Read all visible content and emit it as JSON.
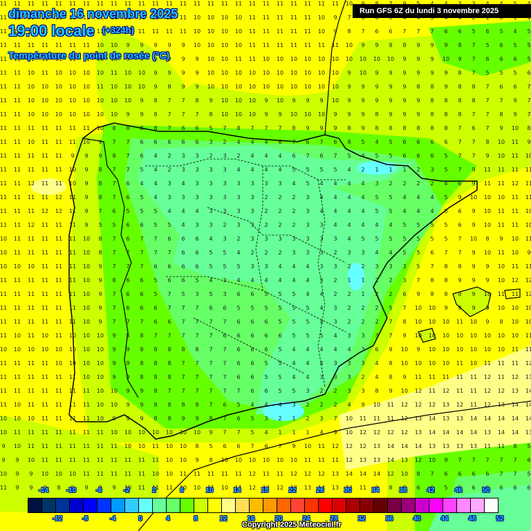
{
  "header": {
    "date": "dimanche 16 novembre 2025",
    "time": "19:00 locale",
    "lead": "(+324h)",
    "variable": "Température du point de rosée (°C)",
    "run": "Run GFS 6Z du lundi 3 novembre 2025"
  },
  "footer": {
    "copyright": "Copyright 2025 Meteociel.fr"
  },
  "legend": {
    "colors": [
      "#001040",
      "#003366",
      "#003399",
      "#0000cc",
      "#0000ff",
      "#0033ff",
      "#0099ff",
      "#33ccff",
      "#66ffff",
      "#66ff99",
      "#66ff66",
      "#66ff00",
      "#ccff00",
      "#ffff00",
      "#ffff88",
      "#ffdd55",
      "#ffbb00",
      "#ff9900",
      "#ff6600",
      "#ff4433",
      "#ff3300",
      "#ff0000",
      "#dd0000",
      "#aa0000",
      "#880000",
      "#660000",
      "#770044",
      "#990077",
      "#cc00cc",
      "#ff00ff",
      "#ff44ff",
      "#ff88ff",
      "#ffaaff",
      "#ffffff"
    ],
    "top_labels": [
      "-14",
      "-10",
      "-6",
      "-2",
      "2",
      "6",
      "10",
      "14",
      "18",
      "22",
      "26",
      "30",
      "34",
      "38",
      "42",
      "46",
      "50"
    ],
    "bottom_labels": [
      "-12",
      "-8",
      "-4",
      "0",
      "4",
      "8",
      "12",
      "16",
      "20",
      "24",
      "28",
      "32",
      "36",
      "40",
      "44",
      "48",
      "52"
    ]
  },
  "map": {
    "region": "Iberian Peninsula",
    "zones": [
      {
        "name": "cool-interior",
        "color": "#66ff99"
      },
      {
        "name": "mid-green",
        "color": "#66ff66"
      },
      {
        "name": "bright-green",
        "color": "#66ff00"
      },
      {
        "name": "yellow-green",
        "color": "#ccff00"
      },
      {
        "name": "yellow",
        "color": "#ffff00"
      },
      {
        "name": "pale-yellow",
        "color": "#ffff88"
      },
      {
        "name": "cyan-spots",
        "color": "#66ffff"
      }
    ]
  },
  "grid_rows": [
    "11 11 11 11 11 11 11 11 11 11 11 11 11 11 11 11 11 11 11 11 11 11 11 11 11 10 9 8 7 9 5 4 4 3 3 4 4 5 4",
    "11 11 11 11 11 11 11 11 11 11 11 11 11 11 10 10 10 10 11 11 11 11 11 10 9 7 6 6 5 4 4 5 4 4 2 1 0 1 1",
    "11 11 11 11 11 11 11 11 11 11 11 11 11 11 10 10 10 10 11 11 11 11 11 10 9 8 7 6 6 7 7 7 6 6 5 6 5 4 5",
    "11 11 11 11 11 11 11 10 10 9 9 9 9 9 10 10 10 10 11 11 11 11 11 11 11 10 9 9 8 8 9 9 9 8 7 5 6 5 5 5",
    "11 11 11 11 11 11 11 10 10 9 9 9 9 9 9 10 10 11 11 10 10 10 10 10 10 10 10 10 10 9 9 9 10 9 7 6 6 6 5 5",
    "11 11 10 11 10 10 10 10 11 10 10 9 9 9 9 10 10 10 10 10 10 10 10 10 10 9 10 9 9 9 9 9 9 8 7 5 5 5 6",
    "11 11 10 10 10 10 10 11 10 10 10 9 8 9 9 10 10 10 10 10 10 10 10 10 10 9 9 9 9 9 8 8 9 8 8 7 6 6 7",
    "11 11 10 10 10 10 10 10 10 10 9 8 7 7 8 9 10 10 10 9 10 9 9 9 10 9 9 9 9 9 9 8 8 8 8 7 7 9 7",
    "11 11 10 10 10 10 10 10 10 9 9 8 7 7 7 8 10 10 10 9 9 10 10 10 9 9 9 8 9 9 9 8 8 8 7 7 8 9 7",
    "11 11 11 11 11 11 11 10 8 8 8 8 7 6 6 5 7 8 7 7 7 8 9 9 9 8 9 8 8 8 8 8 8 7 6 7 9 10 8",
    "11 11 10 11 11 11 10 9 7 7 6 6 6 6 6 3 2 4 4 4 6 7 6 7 6 8 5 4 5 6 6 6 6 7 7 8 10 11 9",
    "11 11 11 11 11 9 9 9 8 7 6 4 2 3 3 2 3 2 4 4 4 6 7 6 7 5 4 5 5 6 6 6 5 7 7 9 10 11 10",
    "11 11 11 11 11 10 9 8 7 7 5 4 2 3 3 3 3 4 4 4 4 5 5 5 5 4 2 1 1 1 2 3 5 7 9 11 11 11 11",
    "11 11 12 11 11 10 9 8 7 6 4 4 3 4 3 3 3 3 3 3 3 4 5 4 4 4 4 3 2 2 2 2 4 6 9 11 11 12 11",
    "11 11 11 11 12 11 9 8 7 6 5 4 3 3 3 3 3 3 3 2 2 2 3 4 4 4 4 5 5 4 4 4 5 9 10 10 10 11 11",
    "11 11 11 12 12 11 9 7 6 5 5 5 4 4 4 3 3 3 3 2 2 2 3 4 4 4 4 5 5 4 4 4 5 6 9 10 11 11 10",
    "11 11 12 11 11 11 9 5 5 6 6 5 5 4 3 3 2 3 3 2 2 2 3 3 4 4 4 4 4 5 5 5 5 6 9 10 11 11 10",
    "10 11 11 11 11 11 10 8 7 6 7 7 6 6 6 4 3 2 3 3 3 3 3 3 3 4 5 5 5 5 5 5 5 7 10 8 9 10 11",
    "10 11 11 11 11 11 10 8 7 7 7 7 7 6 6 5 5 4 2 2 2 3 3 3 2 3 3 4 4 5 5 6 7 7 9 10 11 10 9",
    "10 10 10 11 11 11 10 9 7 7 7 6 6 6 6 5 5 5 3 3 4 4 4 3 3 2 2 3 3 3 5 7 8 8 9 9 10 11 11",
    "11 11 11 11 11 11 10 9 8 6 6 5 6 6 5 4 3 4 4 4 4 4 4 3 2 1 1 2 2 3 7 8 8 9 9 9 10 12 12",
    "11 11 11 11 11 11 10 9 7 6 6 5 7 5 3 5 3 6 6 5 5 5 4 4 2 2 1 2 2 6 9 8 8 8 9 10 11 11 12",
    "11 11 11 11 11 11 10 9 7 6 6 6 7 7 7 6 6 5 5 5 5 5 5 4 3 2 2 2 5 7 10 10 9 9 9 9 10 10 10",
    "11 11 11 11 11 11 10 9 7 7 7 6 6 7 7 7 7 6 6 6 5 5 5 4 3 2 2 2 7 8 10 10 10 11 10 9 8 10 10",
    "11 10 11 10 11 10 10 10 9 8 8 7 7 7 7 7 6 6 6 6 6 5 5 5 4 3 3 3 7 9 10 10 10 10 10 10 10 10 11",
    "10 10 10 10 10 10 10 10 9 9 8 8 8 8 8 7 7 6 6 6 5 4 4 4 4 4 3 6 9 10 9 10 10 10 10 10 10 11 11",
    "11 11 11 11 10 10 10 10 9 9 8 8 8 7 7 7 7 6 6 5 5 4 4 4 3 3 3 4 8 10 10 10 10 11 10 11 11 11 12",
    "11 11 11 11 11 11 10 10 9 9 8 8 8 7 7 7 7 6 6 5 5 4 4 3 3 3 2 4 8 9 11 11 11 11 11 12 11 12 13",
    "11 11 11 11 11 11 11 10 10 9 9 8 7 7 7 7 7 7 6 6 5 5 3 2 2 3 3 8 9 10 12 11 12 11 11 12 12 13 14",
    "11 10 11 11 11 11 11 10 10 9 9 8 8 8 8 7 6 5 4 4 4 3 2 2 2 4 9 10 11 12 12 12 13 12 11 12 13 14 14",
    "10 10 10 11 11 11 11 10 9 9 9 8 8 9 9 8 7 6 5 3 2 1 2 3 7 10 11 11 11 12 13 14 13 13 14 14 14 14 14",
    "10 11 11 11 11 11 11 11 10 10 10 10 10 10 10 9 7 7 5 4 1 1 1 4 9 10 12 12 12 12 13 14 14 14 14 13 14 14 13",
    "9 10 11 11 11 11 11 11 11 10 10 11 10 10 8 5 6 6 7 6 7 9 10 11 12 12 12 13 14 14 14 13 13 13 13 11 11 8 5",
    "9 9 10 11 11 11 11 11 11 11 11 11 10 10 9 8 10 10 10 10 10 10 11 11 11 12 13 13 14 13 12 10 9 7 7 7 7 7 6",
    "10 9 9 10 10 10 11 11 11 11 11 10 10 11 11 11 11 11 12 11 11 12 12 12 13 14 14 14 12 10 8 7 6 6 6 6 7 7 5",
    "11 9 9 9 8 9 9 9 9 10 11 11 11 10 10 11 10 11 12 12 12 12 13 14 13 12 11 9 8 8 6 6 5 5 6 6 6 6 6"
  ]
}
